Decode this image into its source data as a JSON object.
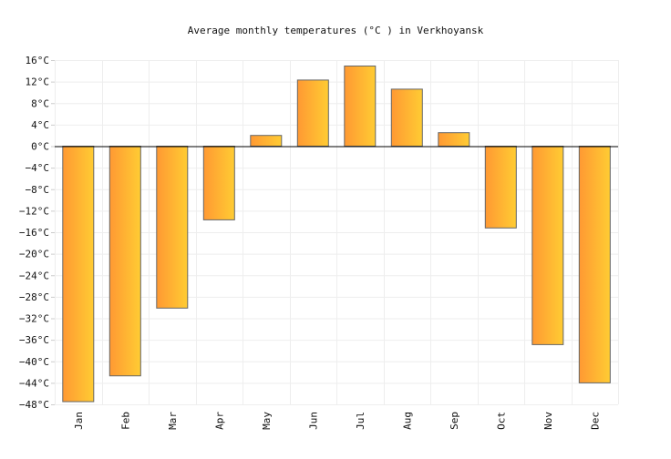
{
  "chart_data": {
    "type": "bar",
    "title": "Average monthly temperatures (°C ) in Verkhoyansk",
    "xlabel": "",
    "ylabel": "",
    "categories": [
      "Jan",
      "Feb",
      "Mar",
      "Apr",
      "May",
      "Jun",
      "Jul",
      "Aug",
      "Sep",
      "Oct",
      "Nov",
      "Dec"
    ],
    "values": [
      -47.5,
      -42.7,
      -30.1,
      -13.7,
      2.0,
      12.3,
      14.9,
      10.6,
      2.5,
      -15.2,
      -36.9,
      -44.0
    ],
    "ylim": [
      -48,
      16
    ],
    "yticks": [
      16,
      12,
      8,
      4,
      0,
      -4,
      -8,
      -12,
      -16,
      -20,
      -24,
      -28,
      -32,
      -36,
      -40,
      -44,
      -48
    ],
    "ytick_labels": [
      "16°C",
      "12°C",
      "8°C",
      "4°C",
      "0°C",
      "−4°C",
      "−8°C",
      "−12°C",
      "−16°C",
      "−20°C",
      "−24°C",
      "−28°C",
      "−32°C",
      "−36°C",
      "−40°C",
      "−44°C",
      "−48°C"
    ],
    "grid": true,
    "legend": "none",
    "colors": {
      "bar_start": "#ff9933",
      "bar_end": "#ffcc33",
      "bar_stroke": "#666666",
      "grid": "#eeeeee",
      "zero_line": "#000000"
    }
  }
}
